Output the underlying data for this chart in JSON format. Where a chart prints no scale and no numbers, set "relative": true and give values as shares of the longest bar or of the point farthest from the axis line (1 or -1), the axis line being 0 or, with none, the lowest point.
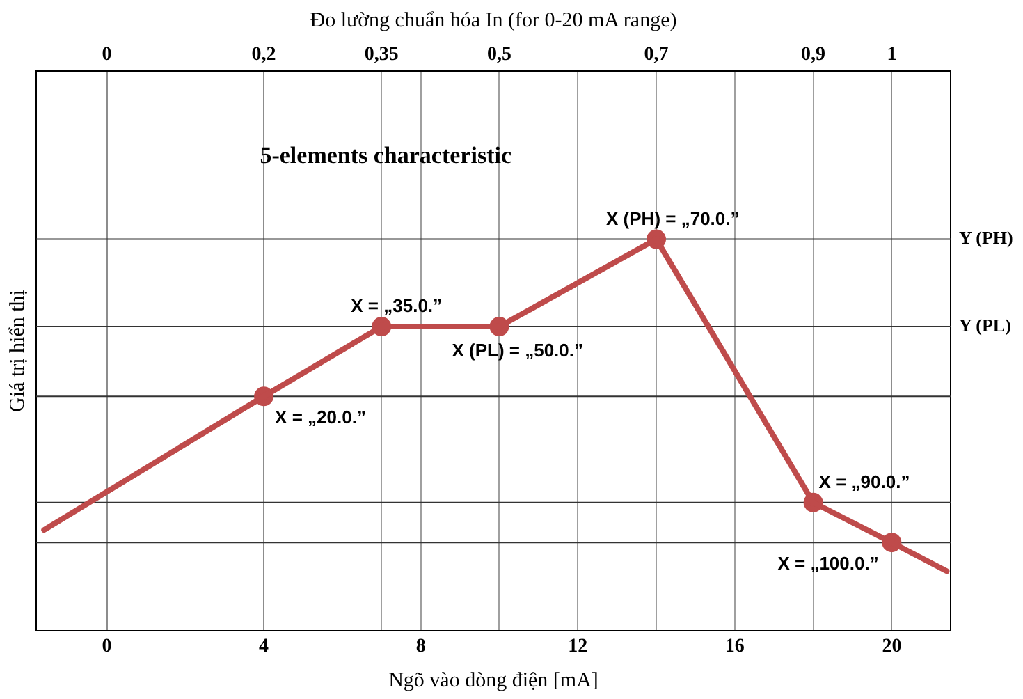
{
  "chart_data": {
    "type": "line",
    "relative": true,
    "title": "5-elements characteristic",
    "xlabel": "Ngõ vào dòng điện [mA]",
    "ylabel": "Giá trị hiển thị",
    "x2label": "Đo lường chuẩn hóa In (for 0-20 mA range)",
    "xlim": [
      -1.8,
      21.5
    ],
    "xticks": [
      0,
      4,
      8,
      12,
      16,
      20
    ],
    "x2lim": [
      -0.09,
      1.075
    ],
    "x2ticks": [
      0,
      {
        "value": 0.2,
        "label": "0,2"
      },
      {
        "value": 0.35,
        "label": "0,35"
      },
      {
        "value": 0.5,
        "label": "0,5"
      },
      {
        "value": 0.7,
        "label": "0,7"
      },
      {
        "value": 0.9,
        "label": "0,9"
      },
      1
    ],
    "grid": "x",
    "legend": false,
    "series": [
      {
        "type": "line",
        "color": "#bf4b4b",
        "marker": "none",
        "x": [
          -1.6,
          4,
          7,
          10,
          14,
          18,
          20,
          21.4
        ],
        "values": [
          0.258,
          0.599,
          0.777,
          0.777,
          1,
          0.328,
          0.226,
          0.153
        ]
      },
      {
        "type": "scatter",
        "color": "#bf4b4b",
        "marker": "circle",
        "x": [
          4,
          7,
          10,
          14,
          18,
          20
        ],
        "values": [
          0.599,
          0.777,
          0.777,
          1,
          0.328,
          0.226
        ]
      }
    ],
    "ref_lines": [
      {
        "axis": "y",
        "value": 1,
        "label": "Y (PH)",
        "color": "#333333"
      },
      {
        "axis": "y",
        "value": 0.777,
        "label": "Y (PL)",
        "color": "#333333"
      },
      {
        "axis": "y",
        "value": 0.599,
        "color": "#333333"
      },
      {
        "axis": "y",
        "value": 0.328,
        "color": "#333333"
      },
      {
        "axis": "y",
        "value": 0.226,
        "color": "#333333"
      }
    ],
    "annotations": [
      {
        "text": "X = „20.0.”",
        "x": 4,
        "y": 0.599
      },
      {
        "text": "X = „35.0.”",
        "x": 7,
        "y": 0.777
      },
      {
        "text": "X (PL) = „50.0.”",
        "x": 10,
        "y": 0.777
      },
      {
        "text": "X (PH) = „70.0.”",
        "x": 14,
        "y": 1
      },
      {
        "text": "X = „90.0.”",
        "x": 18,
        "y": 0.328
      },
      {
        "text": "X = „100.0.”",
        "x": 20,
        "y": 0.226
      }
    ]
  }
}
